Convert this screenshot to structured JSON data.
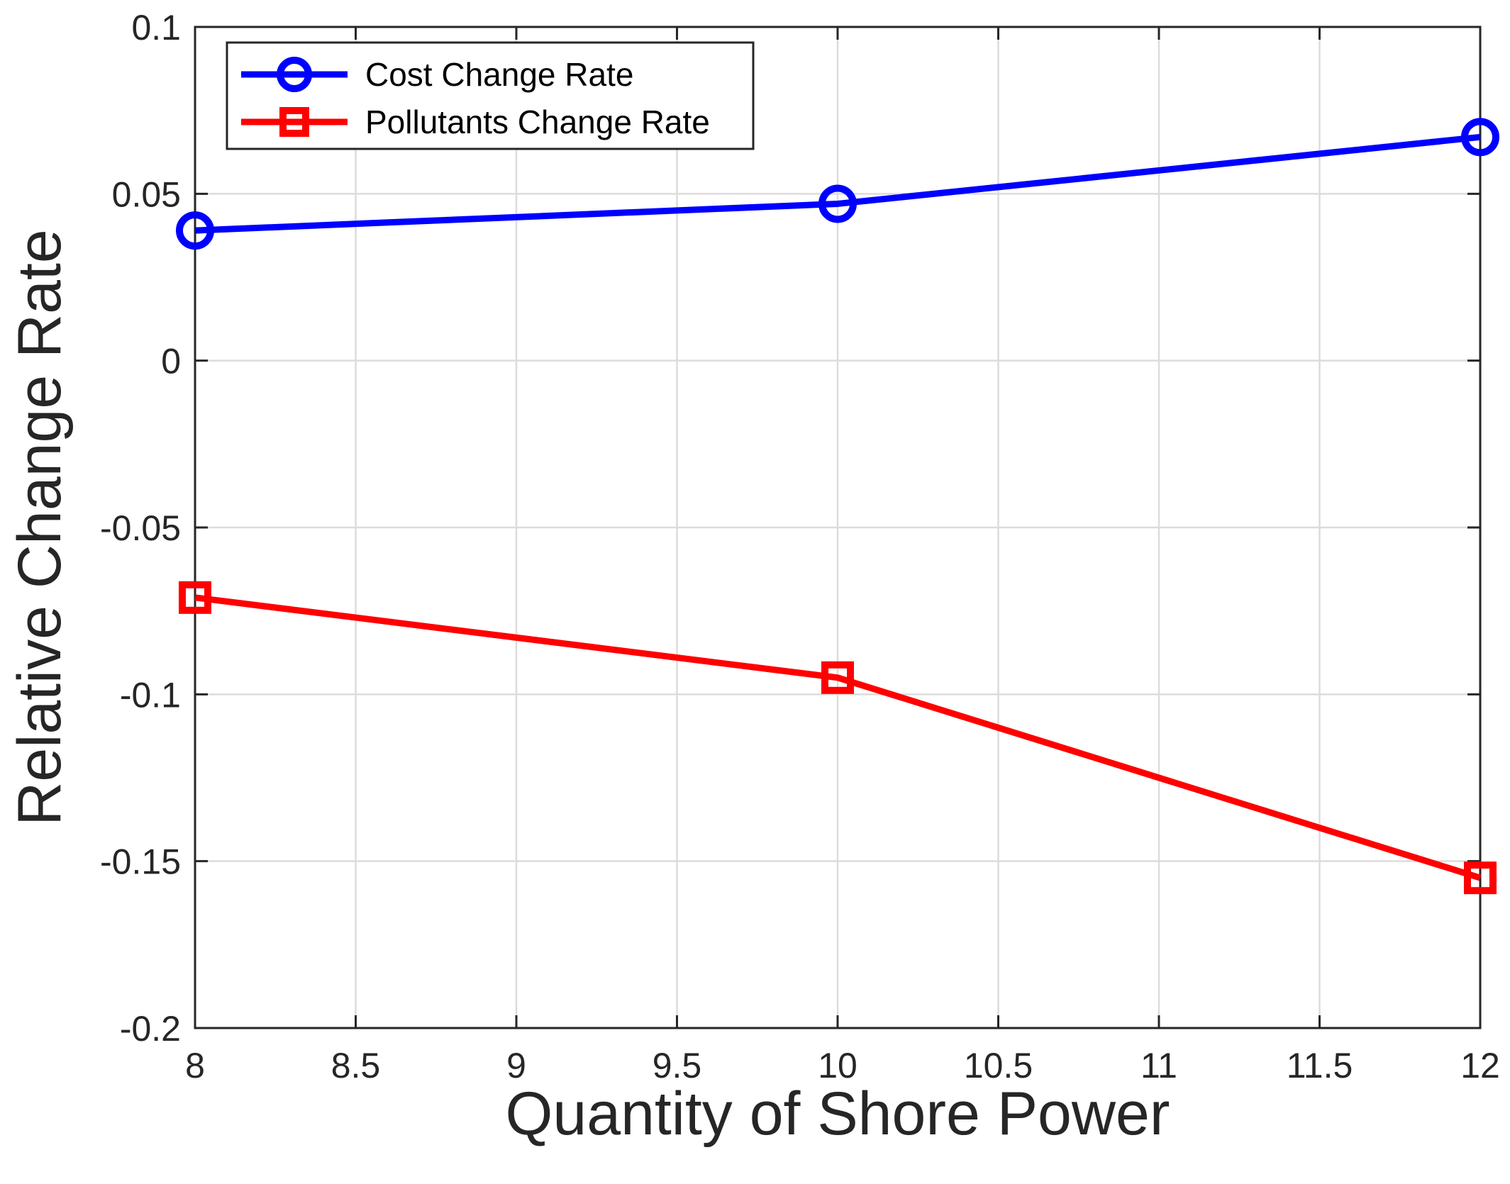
{
  "chart_data": {
    "type": "line",
    "title": "",
    "xlabel": "Quantity of Shore Power",
    "ylabel": "Relative Change Rate",
    "xlim": [
      8,
      12
    ],
    "ylim": [
      -0.2,
      0.1
    ],
    "grid": true,
    "legend_position": "top-left",
    "x_ticks": [
      8,
      8.5,
      9,
      9.5,
      10,
      10.5,
      11,
      11.5,
      12
    ],
    "x_tick_labels": [
      "8",
      "8.5",
      "9",
      "9.5",
      "10",
      "10.5",
      "11",
      "11.5",
      "12"
    ],
    "y_ticks": [
      0.1,
      0.05,
      0,
      -0.05,
      -0.1,
      -0.15,
      -0.2
    ],
    "y_tick_labels": [
      "0.1",
      "0.05",
      "0",
      "-0.05",
      "-0.1",
      "-0.15",
      "-0.2"
    ],
    "x": [
      8,
      10,
      12
    ],
    "series": [
      {
        "name": "Cost Change Rate",
        "values": [
          0.039,
          0.047,
          0.067
        ],
        "color": "#0000ff",
        "marker": "circle"
      },
      {
        "name": "Pollutants Change Rate",
        "values": [
          -0.071,
          -0.095,
          -0.155
        ],
        "color": "#ff0000",
        "marker": "square"
      }
    ]
  }
}
